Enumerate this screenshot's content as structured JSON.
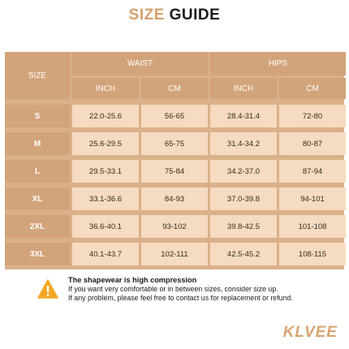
{
  "title": {
    "part1": "SIZE",
    "part2": "GUIDE"
  },
  "table": {
    "size_header": "SIZE",
    "group_headers": [
      "WAIST",
      "HIPS"
    ],
    "unit_headers": [
      "INCH",
      "CM",
      "INCH",
      "CM"
    ],
    "rows": [
      {
        "size": "S",
        "waist_inch": "22.0-25.6",
        "waist_cm": "56-65",
        "hips_inch": "28.4-31.4",
        "hips_cm": "72-80"
      },
      {
        "size": "M",
        "waist_inch": "25.6-29.5",
        "waist_cm": "65-75",
        "hips_inch": "31.4-34.2",
        "hips_cm": "80-87"
      },
      {
        "size": "L",
        "waist_inch": "29.5-33.1",
        "waist_cm": "75-84",
        "hips_inch": "34.2-37.0",
        "hips_cm": "87-94"
      },
      {
        "size": "XL",
        "waist_inch": "33.1-36.6",
        "waist_cm": "84-93",
        "hips_inch": "37.0-39.8",
        "hips_cm": "94-101"
      },
      {
        "size": "2XL",
        "waist_inch": "36.6-40.1",
        "waist_cm": "93-102",
        "hips_inch": "39.8-42.5",
        "hips_cm": "101-108"
      },
      {
        "size": "3XL",
        "waist_inch": "40.1-43.7",
        "waist_cm": "102-111",
        "hips_inch": "42.5-45.2",
        "hips_cm": "108-115"
      }
    ]
  },
  "notice": {
    "icon": "warning-icon",
    "heading": "The shapewear is high compression",
    "line1": "If you want very comfortable or in between sizes, consider size up.",
    "line2": "If any problem, please feel free to contact us for replacement or refund."
  },
  "brand": "KLVEE",
  "colors": {
    "accent": "#d4a06c",
    "header_bg": "#d3a37a",
    "cell_bg": "#f5dbc1",
    "grid": "#dab089",
    "warning": "#f5a623"
  }
}
